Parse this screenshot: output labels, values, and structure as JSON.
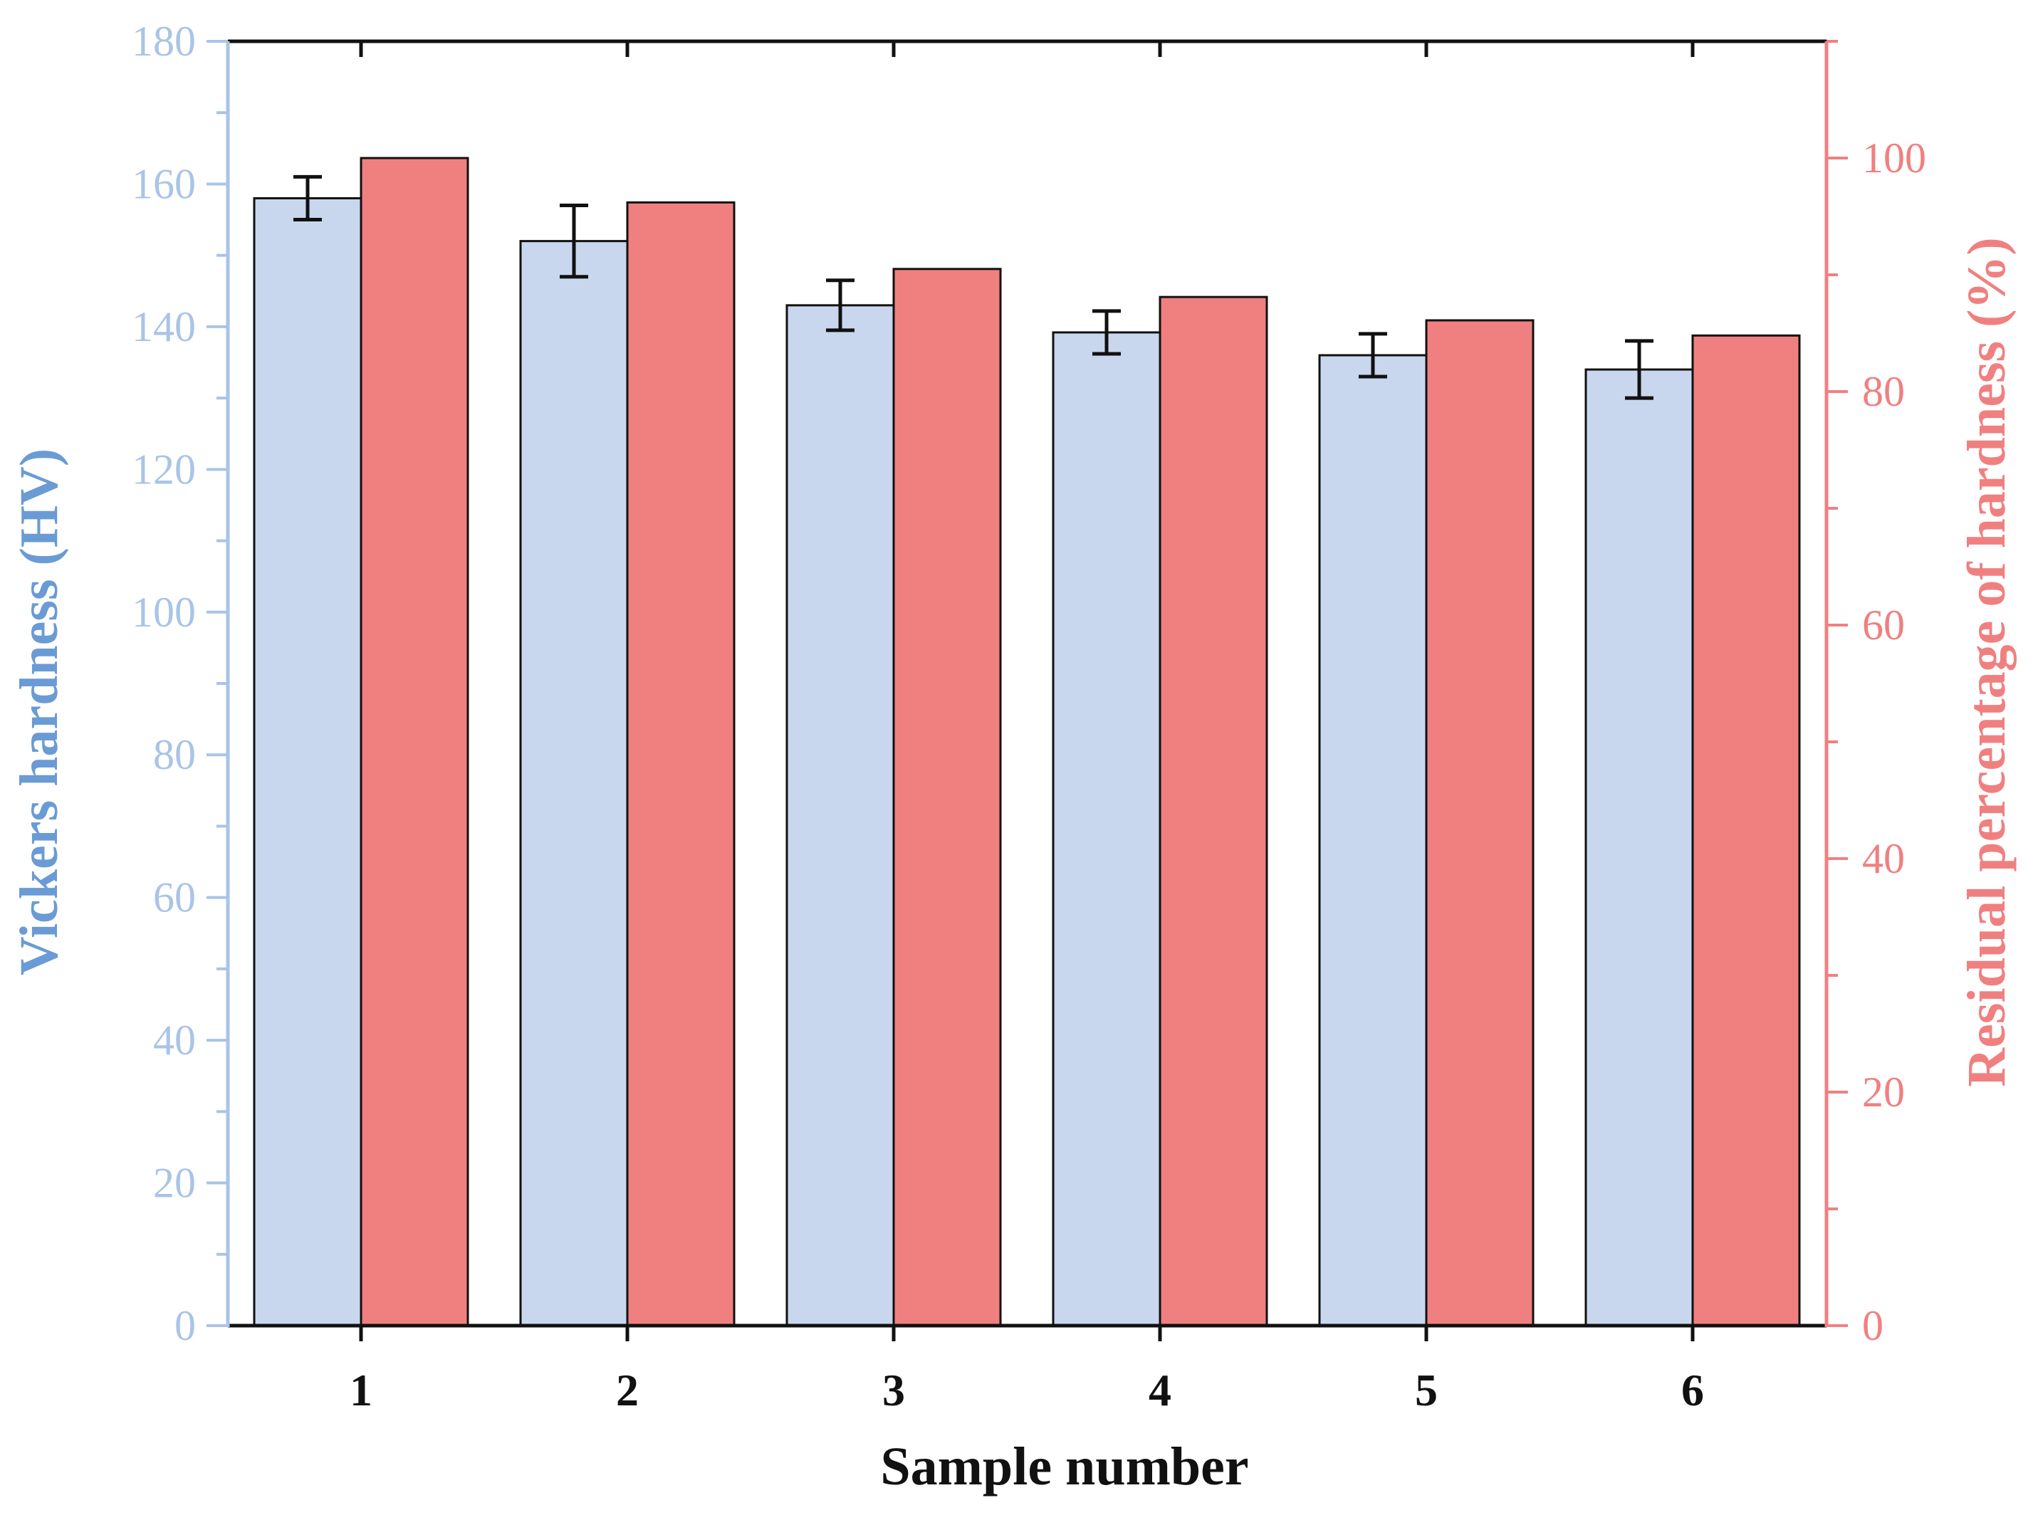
{
  "chart_data": {
    "type": "bar",
    "categories": [
      "1",
      "2",
      "3",
      "4",
      "5",
      "6"
    ],
    "xlabel": "Sample number",
    "y_left": {
      "label": "Vickers hardness (HV)",
      "ylim": [
        0,
        180
      ],
      "ticks": [
        "0",
        "20",
        "40",
        "60",
        "80",
        "100",
        "120",
        "140",
        "160",
        "180"
      ],
      "color": "#A9C4E6",
      "label_color": "#6A9BD4"
    },
    "y_right": {
      "label": "Residual percentage of hardness (%)",
      "ylim": [
        0,
        110
      ],
      "ticks": [
        "0",
        "20",
        "40",
        "60",
        "80",
        "100"
      ],
      "color": "#F08080"
    },
    "series": [
      {
        "axis": "left",
        "color": "#C9D7EE",
        "values": [
          158,
          152,
          143,
          139.2,
          136,
          134
        ],
        "errors": [
          3,
          5,
          3.5,
          3,
          3,
          4
        ]
      },
      {
        "axis": "right",
        "color": "#F08080",
        "values": [
          100,
          96.2,
          90.5,
          88.1,
          86.1,
          84.8
        ]
      }
    ],
    "grid": false,
    "legend": "none"
  }
}
